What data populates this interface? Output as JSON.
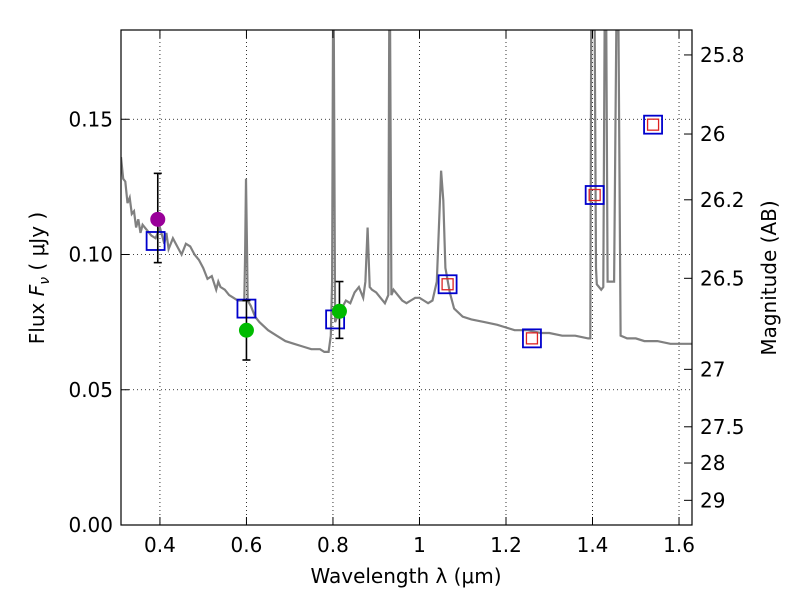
{
  "chart_data": {
    "type": "scatter",
    "x_range": [
      0.31,
      1.63
    ],
    "y_range": [
      0,
      0.183
    ],
    "xlabel": "Wavelength  λ (μm)",
    "ylabel_parts": {
      "pre": "Flux  ",
      "var": "F",
      "sub": "ν",
      "post": "  ( μJy )"
    },
    "y2label": "Magnitude (AB)",
    "grid": true,
    "xticks": [
      {
        "value": 0.4,
        "label": "0.4"
      },
      {
        "value": 0.6,
        "label": "0.6"
      },
      {
        "value": 0.8,
        "label": "0.8"
      },
      {
        "value": 1.0,
        "label": "1"
      },
      {
        "value": 1.2,
        "label": "1.2"
      },
      {
        "value": 1.4,
        "label": "1.4"
      },
      {
        "value": 1.6,
        "label": "1.6"
      }
    ],
    "yticks": [
      {
        "value": 0.0,
        "label": "0.00"
      },
      {
        "value": 0.05,
        "label": "0.05"
      },
      {
        "value": 0.1,
        "label": "0.10"
      },
      {
        "value": 0.15,
        "label": "0.15"
      }
    ],
    "mag_ticks": [
      {
        "mag": 25.8,
        "label": "25.8"
      },
      {
        "mag": 26.0,
        "label": "26"
      },
      {
        "mag": 26.2,
        "label": "26.2"
      },
      {
        "mag": 26.5,
        "label": "26.5"
      },
      {
        "mag": 27.0,
        "label": "27"
      },
      {
        "mag": 27.5,
        "label": "27.5"
      },
      {
        "mag": 28.0,
        "label": "28"
      },
      {
        "mag": 29.0,
        "label": "29"
      }
    ],
    "sed_spectrum": {
      "color": "#808080",
      "points": [
        [
          0.31,
          0.136
        ],
        [
          0.315,
          0.128
        ],
        [
          0.32,
          0.127
        ],
        [
          0.325,
          0.119
        ],
        [
          0.33,
          0.121
        ],
        [
          0.335,
          0.115
        ],
        [
          0.34,
          0.116
        ],
        [
          0.345,
          0.11
        ],
        [
          0.35,
          0.113
        ],
        [
          0.355,
          0.108
        ],
        [
          0.36,
          0.111
        ],
        [
          0.37,
          0.109
        ],
        [
          0.38,
          0.107
        ],
        [
          0.39,
          0.106
        ],
        [
          0.4,
          0.11
        ],
        [
          0.41,
          0.104
        ],
        [
          0.415,
          0.108
        ],
        [
          0.42,
          0.102
        ],
        [
          0.43,
          0.106
        ],
        [
          0.44,
          0.103
        ],
        [
          0.45,
          0.1
        ],
        [
          0.46,
          0.104
        ],
        [
          0.47,
          0.103
        ],
        [
          0.48,
          0.1
        ],
        [
          0.49,
          0.098
        ],
        [
          0.5,
          0.095
        ],
        [
          0.51,
          0.091
        ],
        [
          0.52,
          0.092
        ],
        [
          0.53,
          0.087
        ],
        [
          0.535,
          0.09
        ],
        [
          0.54,
          0.088
        ],
        [
          0.55,
          0.087
        ],
        [
          0.56,
          0.085
        ],
        [
          0.57,
          0.084
        ],
        [
          0.58,
          0.083
        ],
        [
          0.59,
          0.083
        ],
        [
          0.595,
          0.083
        ],
        [
          0.597,
          0.1
        ],
        [
          0.599,
          0.128
        ],
        [
          0.601,
          0.105
        ],
        [
          0.603,
          0.083
        ],
        [
          0.61,
          0.081
        ],
        [
          0.62,
          0.077
        ],
        [
          0.63,
          0.075
        ],
        [
          0.65,
          0.072
        ],
        [
          0.67,
          0.07
        ],
        [
          0.69,
          0.068
        ],
        [
          0.71,
          0.067
        ],
        [
          0.73,
          0.066
        ],
        [
          0.75,
          0.065
        ],
        [
          0.77,
          0.065
        ],
        [
          0.78,
          0.064
        ],
        [
          0.79,
          0.064
        ],
        [
          0.795,
          0.07
        ],
        [
          0.798,
          0.09
        ],
        [
          0.8,
          0.183
        ],
        [
          0.802,
          0.183
        ],
        [
          0.805,
          0.075
        ],
        [
          0.81,
          0.077
        ],
        [
          0.82,
          0.08
        ],
        [
          0.83,
          0.083
        ],
        [
          0.84,
          0.082
        ],
        [
          0.85,
          0.086
        ],
        [
          0.86,
          0.088
        ],
        [
          0.87,
          0.084
        ],
        [
          0.875,
          0.09
        ],
        [
          0.88,
          0.11
        ],
        [
          0.885,
          0.088
        ],
        [
          0.89,
          0.087
        ],
        [
          0.9,
          0.086
        ],
        [
          0.91,
          0.084
        ],
        [
          0.92,
          0.082
        ],
        [
          0.928,
          0.085
        ],
        [
          0.93,
          0.183
        ],
        [
          0.932,
          0.183
        ],
        [
          0.935,
          0.085
        ],
        [
          0.94,
          0.087
        ],
        [
          0.95,
          0.085
        ],
        [
          0.96,
          0.083
        ],
        [
          0.97,
          0.082
        ],
        [
          0.98,
          0.083
        ],
        [
          0.99,
          0.084
        ],
        [
          1.0,
          0.084
        ],
        [
          1.01,
          0.083
        ],
        [
          1.02,
          0.082
        ],
        [
          1.03,
          0.083
        ],
        [
          1.04,
          0.09
        ],
        [
          1.045,
          0.11
        ],
        [
          1.05,
          0.131
        ],
        [
          1.055,
          0.12
        ],
        [
          1.06,
          0.095
        ],
        [
          1.07,
          0.086
        ],
        [
          1.08,
          0.08
        ],
        [
          1.1,
          0.077
        ],
        [
          1.12,
          0.076
        ],
        [
          1.15,
          0.075
        ],
        [
          1.18,
          0.074
        ],
        [
          1.2,
          0.073
        ],
        [
          1.22,
          0.072
        ],
        [
          1.25,
          0.072
        ],
        [
          1.28,
          0.071
        ],
        [
          1.3,
          0.071
        ],
        [
          1.33,
          0.07
        ],
        [
          1.36,
          0.07
        ],
        [
          1.39,
          0.069
        ],
        [
          1.395,
          0.069
        ],
        [
          1.397,
          0.183
        ],
        [
          1.405,
          0.183
        ],
        [
          1.408,
          0.095
        ],
        [
          1.41,
          0.089
        ],
        [
          1.415,
          0.088
        ],
        [
          1.42,
          0.087
        ],
        [
          1.425,
          0.088
        ],
        [
          1.428,
          0.183
        ],
        [
          1.432,
          0.183
        ],
        [
          1.435,
          0.09
        ],
        [
          1.44,
          0.09
        ],
        [
          1.45,
          0.09
        ],
        [
          1.455,
          0.183
        ],
        [
          1.46,
          0.183
        ],
        [
          1.465,
          0.07
        ],
        [
          1.48,
          0.069
        ],
        [
          1.5,
          0.069
        ],
        [
          1.52,
          0.068
        ],
        [
          1.55,
          0.068
        ],
        [
          1.58,
          0.067
        ],
        [
          1.6,
          0.067
        ],
        [
          1.62,
          0.067
        ],
        [
          1.63,
          0.067
        ]
      ]
    },
    "model_fluxes": {
      "marker": "open-square",
      "color": "#0000cc",
      "points": [
        [
          0.39,
          0.105
        ],
        [
          0.6,
          0.08
        ],
        [
          0.805,
          0.076
        ],
        [
          1.065,
          0.089
        ],
        [
          1.26,
          0.069
        ],
        [
          1.405,
          0.122
        ],
        [
          1.54,
          0.148
        ]
      ]
    },
    "observed_fluxes": {
      "marker": "open-square-red",
      "color": "#dd2222",
      "points": [
        [
          1.065,
          0.089
        ],
        [
          1.26,
          0.069
        ],
        [
          1.405,
          0.122
        ],
        [
          1.54,
          0.148
        ]
      ]
    },
    "detections": [
      {
        "x": 0.395,
        "y": 0.113,
        "yerr_low": 0.097,
        "yerr_high": 0.13,
        "color": "#990099"
      },
      {
        "x": 0.6,
        "y": 0.072,
        "yerr_low": 0.061,
        "yerr_high": 0.083,
        "color": "#00bb00"
      },
      {
        "x": 0.815,
        "y": 0.079,
        "yerr_low": 0.069,
        "yerr_high": 0.09,
        "color": "#00bb00"
      }
    ]
  }
}
